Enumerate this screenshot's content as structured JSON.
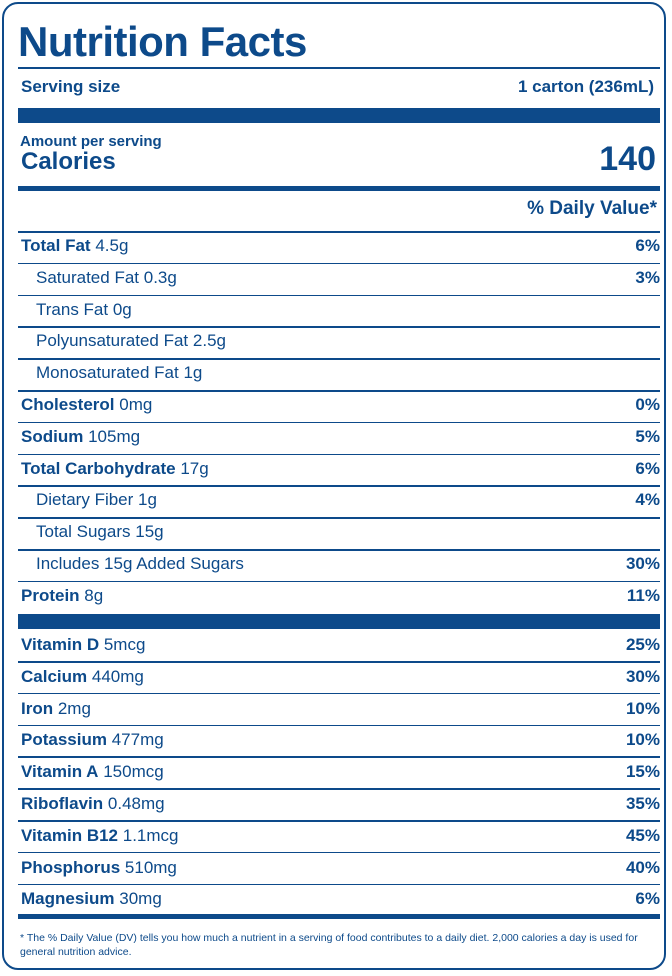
{
  "title": "Nutrition Facts",
  "serving": {
    "label": "Serving size",
    "value": "1 carton (236mL)"
  },
  "calories": {
    "amount_label": "Amount per serving",
    "label": "Calories",
    "value": "140"
  },
  "daily_value_header": "% Daily Value*",
  "nutrients": [
    {
      "name": "Total Fat",
      "amount": "4.5g",
      "dv": "6%",
      "bold": true,
      "indent": false
    },
    {
      "name": "Saturated Fat",
      "amount": "0.3g",
      "dv": "3%",
      "bold": false,
      "indent": true
    },
    {
      "name": "Trans Fat",
      "amount": "0g",
      "dv": "",
      "bold": false,
      "indent": true
    },
    {
      "name": "Polyunsaturated Fat",
      "amount": "2.5g",
      "dv": "",
      "bold": false,
      "indent": true
    },
    {
      "name": "Monosaturated Fat",
      "amount": "1g",
      "dv": "",
      "bold": false,
      "indent": true
    },
    {
      "name": "Cholesterol",
      "amount": "0mg",
      "dv": "0%",
      "bold": true,
      "indent": false
    },
    {
      "name": "Sodium",
      "amount": "105mg",
      "dv": "5%",
      "bold": true,
      "indent": false
    },
    {
      "name": "Total Carbohydrate",
      "amount": "17g",
      "dv": "6%",
      "bold": true,
      "indent": false
    },
    {
      "name": "Dietary Fiber",
      "amount": "1g",
      "dv": "4%",
      "bold": false,
      "indent": true
    },
    {
      "name": "Total Sugars",
      "amount": "15g",
      "dv": "",
      "bold": false,
      "indent": true
    },
    {
      "name": "Includes 15g Added Sugars",
      "amount": "",
      "dv": "30%",
      "bold": false,
      "indent": true
    },
    {
      "name": "Protein",
      "amount": "8g",
      "dv": "11%",
      "bold": true,
      "indent": false
    }
  ],
  "vitamins": [
    {
      "name": "Vitamin D",
      "amount": "5mcg",
      "dv": "25%"
    },
    {
      "name": "Calcium",
      "amount": "440mg",
      "dv": "30%"
    },
    {
      "name": "Iron",
      "amount": "2mg",
      "dv": "10%"
    },
    {
      "name": "Potassium",
      "amount": "477mg",
      "dv": "10%"
    },
    {
      "name": "Vitamin A",
      "amount": "150mcg",
      "dv": "15%"
    },
    {
      "name": "Riboflavin",
      "amount": "0.48mg",
      "dv": "35%"
    },
    {
      "name": "Vitamin B12",
      "amount": "1.1mcg",
      "dv": "45%"
    },
    {
      "name": "Phosphorus",
      "amount": "510mg",
      "dv": "40%"
    },
    {
      "name": "Magnesium",
      "amount": "30mg",
      "dv": "6%"
    }
  ],
  "footnote": "* The % Daily Value (DV) tells you how much a nutrient in a serving of food contributes to a daily diet. 2,000 calories a day is used for general nutrition advice.",
  "colors": {
    "ink": "#0d4a8a",
    "background": "#ffffff"
  }
}
